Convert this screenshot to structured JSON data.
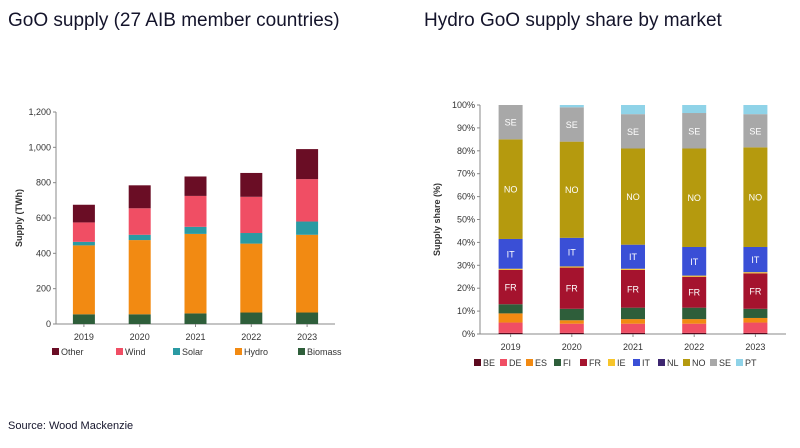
{
  "titles": {
    "left": "GoO supply (27 AIB member countries)",
    "right": "Hydro GoO supply share by market"
  },
  "source": "Source: Wood Mackenzie",
  "chart_data": [
    {
      "type": "bar",
      "stacked": true,
      "title": "GoO supply (27 AIB member countries)",
      "ylabel": "Supply (TWh)",
      "xlabel": "",
      "ylim": [
        0,
        1200
      ],
      "yticks": [
        0,
        200,
        400,
        600,
        800,
        1000,
        1200
      ],
      "ytick_labels": [
        "0",
        "200",
        "400",
        "600",
        "800",
        "1,000",
        "1,200"
      ],
      "categories": [
        "2019",
        "2020",
        "2021",
        "2022",
        "2023"
      ],
      "series": [
        {
          "name": "Biomass",
          "color": "#2e5e3a",
          "values": [
            55,
            55,
            60,
            65,
            65
          ]
        },
        {
          "name": "Hydro",
          "color": "#f28a12",
          "values": [
            390,
            420,
            450,
            390,
            440
          ]
        },
        {
          "name": "Solar",
          "color": "#2a9aa3",
          "values": [
            20,
            30,
            40,
            60,
            75
          ]
        },
        {
          "name": "Wind",
          "color": "#f04e64",
          "values": [
            110,
            150,
            175,
            205,
            240
          ]
        },
        {
          "name": "Other",
          "color": "#6a0d25",
          "values": [
            100,
            130,
            110,
            135,
            170
          ]
        }
      ],
      "legend_order": [
        "Other",
        "Wind",
        "Solar",
        "Hydro",
        "Biomass"
      ],
      "legend_position": "bottom",
      "grid": false
    },
    {
      "type": "bar",
      "stacked": true,
      "percent": true,
      "title": "Hydro GoO supply share by market",
      "ylabel": "Supply share (%)",
      "xlabel": "",
      "ylim": [
        0,
        100
      ],
      "yticks": [
        0,
        10,
        20,
        30,
        40,
        50,
        60,
        70,
        80,
        90,
        100
      ],
      "ytick_labels": [
        "0%",
        "10%",
        "20%",
        "30%",
        "40%",
        "50%",
        "60%",
        "70%",
        "80%",
        "90%",
        "100%"
      ],
      "categories": [
        "2019",
        "2020",
        "2021",
        "2022",
        "2023"
      ],
      "series": [
        {
          "name": "BE",
          "color": "#5c0a1e",
          "values": [
            0.5,
            0.5,
            0.5,
            0.5,
            0.5
          ]
        },
        {
          "name": "DE",
          "color": "#f04e64",
          "values": [
            4.5,
            4,
            4,
            4,
            4.5
          ]
        },
        {
          "name": "ES",
          "color": "#f28a12",
          "values": [
            4,
            1.5,
            2,
            2,
            2
          ]
        },
        {
          "name": "FI",
          "color": "#2e5e3a",
          "values": [
            4,
            5,
            5,
            5,
            4
          ]
        },
        {
          "name": "FR",
          "color": "#a5132e",
          "values": [
            15,
            18,
            16.5,
            13.5,
            15.5
          ]
        },
        {
          "name": "IE",
          "color": "#f7c52b",
          "values": [
            0.5,
            0.5,
            0.5,
            0.5,
            0.5
          ]
        },
        {
          "name": "IT",
          "color": "#3a4fd6",
          "values": [
            13,
            12.5,
            10.5,
            12.5,
            11
          ]
        },
        {
          "name": "NL",
          "color": "#3d2670",
          "values": [
            0,
            0,
            0,
            0,
            0
          ]
        },
        {
          "name": "NO",
          "color": "#b59a0e",
          "values": [
            43.5,
            42,
            42,
            43,
            43.5
          ]
        },
        {
          "name": "SE",
          "color": "#a8a8a8",
          "values": [
            15,
            15,
            15,
            15.5,
            14.5
          ]
        },
        {
          "name": "PT",
          "color": "#8fd3e8",
          "values": [
            0,
            1,
            4,
            3.5,
            4
          ]
        }
      ],
      "segment_labels": [
        "FR",
        "IT",
        "NO",
        "SE"
      ],
      "legend_order": [
        "BE",
        "DE",
        "ES",
        "FI",
        "FR",
        "IE",
        "IT",
        "NL",
        "NO",
        "SE",
        "PT"
      ],
      "legend_position": "bottom",
      "grid": false
    }
  ]
}
